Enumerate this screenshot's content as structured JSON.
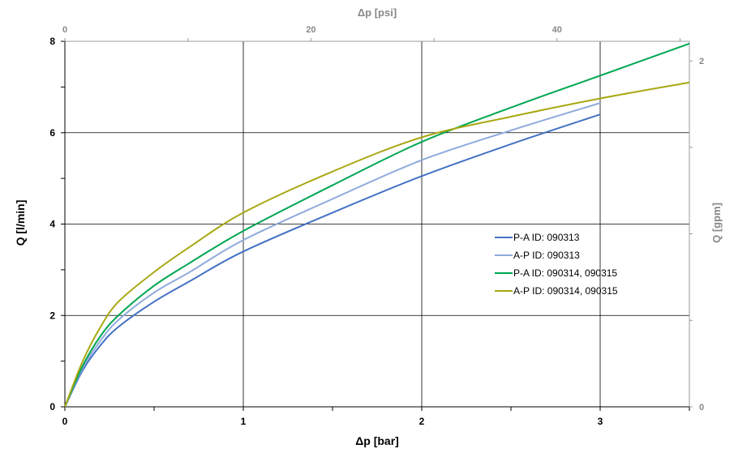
{
  "chart_data": {
    "type": "line",
    "xlabel": "Δp [bar]",
    "ylabel": "Q [l/min]",
    "x2label": "Δp [psi]",
    "y2label": "Q [gpm]",
    "xlim": [
      0,
      3.5
    ],
    "ylim": [
      0,
      8
    ],
    "x2lim": [
      0,
      50.76
    ],
    "y2lim": [
      0,
      2.113
    ],
    "x_ticks": [
      "0",
      "1",
      "2",
      "3"
    ],
    "y_ticks": [
      "0",
      "2",
      "4",
      "6",
      "8"
    ],
    "x2_ticks": [
      "0",
      "20",
      "40"
    ],
    "y2_ticks": [
      "0",
      "2"
    ],
    "grid": true,
    "legend_position": "right-center",
    "series": [
      {
        "name": "P-A ID: 090313",
        "color": "#4472c4",
        "x": [
          0,
          0.1,
          0.2,
          0.3,
          0.5,
          0.7,
          1.0,
          1.5,
          2.0,
          2.5,
          3.0
        ],
        "y": [
          0,
          0.8,
          1.35,
          1.75,
          2.3,
          2.75,
          3.4,
          4.25,
          5.05,
          5.75,
          6.4
        ]
      },
      {
        "name": "A-P ID: 090313",
        "color": "#8faadc",
        "x": [
          0,
          0.1,
          0.2,
          0.3,
          0.5,
          0.7,
          1.0,
          1.5,
          2.0,
          2.5,
          3.0
        ],
        "y": [
          0,
          0.85,
          1.45,
          1.9,
          2.5,
          2.95,
          3.65,
          4.55,
          5.4,
          6.05,
          6.65
        ]
      },
      {
        "name": "P-A ID: 090314, 090315",
        "color": "#00a651",
        "x": [
          0,
          0.1,
          0.2,
          0.3,
          0.5,
          0.7,
          1.0,
          1.5,
          2.0,
          2.5,
          3.0,
          3.5
        ],
        "y": [
          0,
          0.9,
          1.55,
          2.0,
          2.65,
          3.15,
          3.85,
          4.85,
          5.8,
          6.55,
          7.25,
          7.95
        ]
      },
      {
        "name": "A-P ID: 090314, 090315",
        "color": "#a8a813",
        "x": [
          0,
          0.1,
          0.2,
          0.3,
          0.5,
          0.7,
          1.0,
          1.5,
          2.0,
          2.5,
          3.0,
          3.5
        ],
        "y": [
          0,
          1.0,
          1.75,
          2.3,
          2.95,
          3.5,
          4.25,
          5.15,
          5.9,
          6.35,
          6.75,
          7.1
        ]
      }
    ]
  }
}
